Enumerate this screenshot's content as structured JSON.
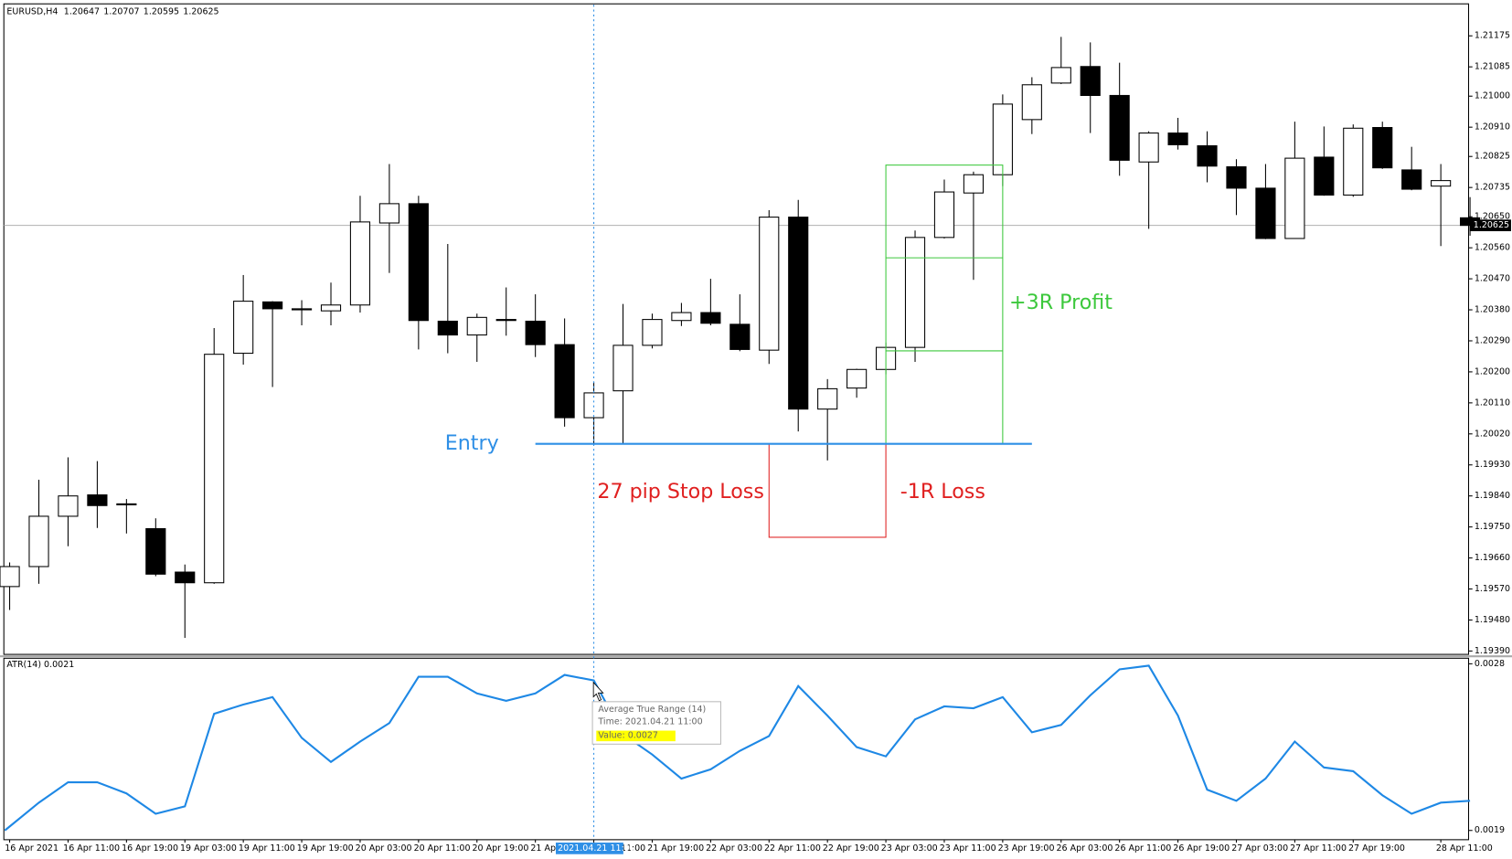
{
  "header": "EURUSD,H4",
  "crosshair_time": "2021.04.21 11:00",
  "tooltip": {
    "title": "Average True Range (14)",
    "time": "Time: 2021.04.21 11:00",
    "value": "Value: 0.0027"
  },
  "chart_data": [
    {
      "type": "candlestick",
      "categories": [
        "16 Apr 2021",
        null,
        "16 Apr 11:00",
        null,
        "16 Apr 19:00",
        null,
        "19 Apr 03:00",
        null,
        "19 Apr 11:00",
        null,
        "19 Apr 19:00",
        null,
        "20 Apr 03:00",
        null,
        "20 Apr 11:00",
        null,
        "20 Apr 19:00",
        null,
        "21 Apr 03:00",
        null,
        "21 Apr 11:00",
        null,
        "21 Apr 19:00",
        null,
        "22 Apr 03:00",
        null,
        "22 Apr 11:00",
        null,
        "22 Apr 19:00",
        null,
        "23 Apr 03:00",
        null,
        "23 Apr 11:00",
        null,
        "23 Apr 19:00",
        null,
        "26 Apr 03:00",
        null,
        "26 Apr 11:00",
        null,
        "26 Apr 19:00",
        null,
        "27 Apr 03:00",
        null,
        "27 Apr 11:00",
        null,
        "27 Apr 19:00",
        null,
        null,
        "28 Apr 11:00",
        null
      ],
      "open": [
        1.19577,
        1.19635,
        1.19781,
        1.19843,
        1.19817,
        1.19745,
        1.19619,
        1.19588,
        1.20254,
        1.20403,
        1.20383,
        1.20377,
        1.20394,
        1.20632,
        1.20688,
        1.20347,
        1.20307,
        1.20352,
        1.20347,
        1.20279,
        1.20067,
        1.20145,
        1.20277,
        1.20349,
        1.20372,
        1.20338,
        1.20263,
        1.20649,
        1.20092,
        1.20153,
        1.20207,
        1.20271,
        1.2059,
        1.20719,
        1.20772,
        1.20932,
        1.21038,
        1.21086,
        1.21002,
        1.20809,
        1.20893,
        1.20856,
        1.20795,
        1.20733,
        1.20587,
        1.20823,
        1.20713,
        1.20909,
        1.20786,
        1.20739,
        1.20647
      ],
      "high": [
        1.19647,
        1.19887,
        1.19952,
        1.19941,
        1.19831,
        1.19775,
        1.19641,
        1.20327,
        1.20481,
        1.20405,
        1.20408,
        1.20459,
        1.20711,
        1.20803,
        1.20711,
        1.20571,
        1.20369,
        1.20445,
        1.20425,
        1.20355,
        1.2017,
        1.20397,
        1.20369,
        1.204,
        1.2047,
        1.20425,
        1.20669,
        1.20699,
        1.20179,
        1.20209,
        1.20285,
        1.2061,
        1.20758,
        1.20781,
        1.21005,
        1.21055,
        1.21172,
        1.21156,
        1.21097,
        1.20898,
        1.20937,
        1.20898,
        1.20817,
        1.20803,
        1.20926,
        1.20912,
        1.20918,
        1.20926,
        1.20853,
        1.20803,
        1.20707
      ],
      "low": [
        1.19509,
        1.19585,
        1.19694,
        1.19747,
        1.19731,
        1.19607,
        1.19428,
        1.19585,
        1.20221,
        1.20156,
        1.20335,
        1.20335,
        1.20372,
        1.20487,
        1.20265,
        1.20254,
        1.20229,
        1.20305,
        1.20243,
        1.20041,
        1.19991,
        1.19991,
        1.20268,
        1.20333,
        1.20335,
        1.2026,
        1.20223,
        1.20027,
        1.19943,
        1.20125,
        1.20193,
        1.20229,
        1.20587,
        1.20467,
        1.20739,
        1.2089,
        1.21035,
        1.20893,
        1.20769,
        1.20615,
        1.20845,
        1.2075,
        1.20655,
        1.20585,
        1.20587,
        1.20711,
        1.20708,
        1.20789,
        1.20727,
        1.20565,
        1.20595
      ],
      "close": [
        1.19635,
        1.19781,
        1.1984,
        1.19812,
        1.19815,
        1.19613,
        1.19588,
        1.20251,
        1.20405,
        1.20383,
        1.2038,
        1.20394,
        1.20635,
        1.20688,
        1.20349,
        1.20307,
        1.20358,
        1.20349,
        1.20279,
        1.20067,
        1.20139,
        1.20277,
        1.20352,
        1.20372,
        1.20341,
        1.20265,
        1.20649,
        1.20092,
        1.20151,
        1.20207,
        1.20271,
        1.2059,
        1.20722,
        1.20772,
        1.20977,
        1.21033,
        1.21083,
        1.21002,
        1.20814,
        1.20893,
        1.20859,
        1.20797,
        1.20733,
        1.20587,
        1.2082,
        1.20713,
        1.20907,
        1.20792,
        1.2073,
        1.20755,
        1.20625
      ],
      "up_color": "#ffffff",
      "down_color": "#000000",
      "ylim": [
        1.19383,
        1.21265
      ],
      "yticks": [
        1.21175,
        1.21085,
        {
          "value": 1.21,
          "label": "1.21000"
        },
        {
          "value": 1.2091,
          "label": "1.20910"
        },
        1.20825,
        1.20735,
        {
          "value": 1.2065,
          "label": "1.20650"
        },
        {
          "value": 1.2056,
          "label": "1.20560"
        },
        {
          "value": 1.2047,
          "label": "1.20470"
        },
        {
          "value": 1.2038,
          "label": "1.20380"
        },
        {
          "value": 1.2029,
          "label": "1.20290"
        },
        {
          "value": 1.202,
          "label": "1.20200"
        },
        {
          "value": 1.2011,
          "label": "1.20110"
        },
        {
          "value": 1.2002,
          "label": "1.20020"
        },
        {
          "value": 1.1993,
          "label": "1.19930"
        },
        {
          "value": 1.1984,
          "label": "1.19840"
        },
        {
          "value": 1.1975,
          "label": "1.19750"
        },
        {
          "value": 1.1966,
          "label": "1.19660"
        },
        {
          "value": 1.1957,
          "label": "1.19570"
        },
        {
          "value": 1.1948,
          "label": "1.19480"
        },
        {
          "value": 1.1939,
          "label": "1.19390"
        }
      ],
      "entry_price": 1.19991,
      "stop_price": 1.1972,
      "profit_levels": [
        1.20261,
        1.20531,
        1.208
      ],
      "entry_color": "#2e8fe6",
      "stop_color": "#e02020",
      "profit_color": "#3cc83c",
      "annotations": {
        "entry": "Entry",
        "stop": "27 pip Stop Loss",
        "loss": "-1R Loss",
        "profit": "+3R Profit"
      }
    },
    {
      "type": "line",
      "title": "ATR(14) 0.0021",
      "values": [
        0.0019,
        0.00205,
        0.00216,
        0.00216,
        0.0021,
        0.00199,
        0.00203,
        0.00253,
        0.00258,
        0.00262,
        0.0024,
        0.00227,
        0.00238,
        0.00248,
        0.00273,
        0.00273,
        0.00264,
        0.0026,
        0.00264,
        0.00274,
        0.00271,
        0.00242,
        0.00231,
        0.00218,
        0.00223,
        0.00233,
        0.00241,
        0.00268,
        0.00252,
        0.00235,
        0.0023,
        0.0025,
        0.00257,
        0.00256,
        0.00262,
        0.00243,
        0.00247,
        0.00263,
        0.00277,
        0.00279,
        0.00252,
        0.00212,
        0.00206,
        0.00218,
        0.00238,
        0.00224,
        0.00222,
        0.00209,
        0.00199,
        0.00205,
        0.00206
      ],
      "color": "#1e88e5",
      "ylim": [
        0.00185,
        0.00283
      ],
      "yticks": [
        0.0019,
        0.0028
      ]
    }
  ]
}
